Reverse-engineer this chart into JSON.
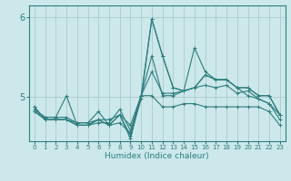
{
  "title": "",
  "xlabel": "Humidex (Indice chaleur)",
  "bg_color": "#cce8ea",
  "line_color": "#2e7d7d",
  "grid_color": "#aacccc",
  "xlim": [
    -0.5,
    23.5
  ],
  "ylim": [
    4.45,
    6.15
  ],
  "yticks": [
    5.0,
    6.0
  ],
  "ytick_labels": [
    "5",
    "6"
  ],
  "xticks": [
    0,
    1,
    2,
    3,
    4,
    5,
    6,
    7,
    8,
    9,
    10,
    11,
    12,
    13,
    14,
    15,
    16,
    17,
    18,
    19,
    20,
    21,
    22,
    23
  ],
  "lines": [
    [
      4.82,
      4.72,
      4.72,
      4.72,
      4.68,
      4.68,
      4.72,
      4.72,
      4.78,
      4.65,
      5.02,
      5.32,
      5.05,
      5.05,
      5.08,
      5.12,
      5.15,
      5.12,
      5.15,
      5.05,
      5.08,
      4.98,
      4.92,
      4.78
    ],
    [
      4.85,
      4.75,
      4.75,
      5.02,
      4.65,
      4.65,
      4.68,
      4.68,
      4.85,
      4.58,
      5.02,
      5.02,
      4.88,
      4.88,
      4.92,
      4.92,
      4.88,
      4.88,
      4.88,
      4.88,
      4.88,
      4.88,
      4.82,
      4.65
    ],
    [
      4.82,
      4.75,
      4.75,
      4.75,
      4.68,
      4.68,
      4.82,
      4.65,
      4.68,
      4.55,
      5.02,
      5.52,
      5.02,
      5.02,
      5.08,
      5.62,
      5.32,
      5.22,
      5.22,
      5.12,
      5.02,
      4.98,
      4.92,
      4.72
    ],
    [
      4.88,
      4.72,
      4.72,
      4.72,
      4.65,
      4.65,
      4.72,
      4.65,
      4.78,
      4.52,
      4.98,
      5.98,
      5.52,
      5.12,
      5.08,
      5.12,
      5.28,
      5.22,
      5.22,
      5.12,
      5.12,
      5.02,
      5.02,
      4.78
    ],
    [
      4.88,
      4.72,
      4.72,
      4.72,
      4.65,
      4.65,
      4.72,
      4.65,
      4.78,
      4.48,
      5.02,
      5.98,
      5.52,
      5.12,
      5.08,
      5.12,
      5.28,
      5.22,
      5.22,
      5.12,
      5.12,
      5.02,
      5.02,
      4.78
    ]
  ]
}
